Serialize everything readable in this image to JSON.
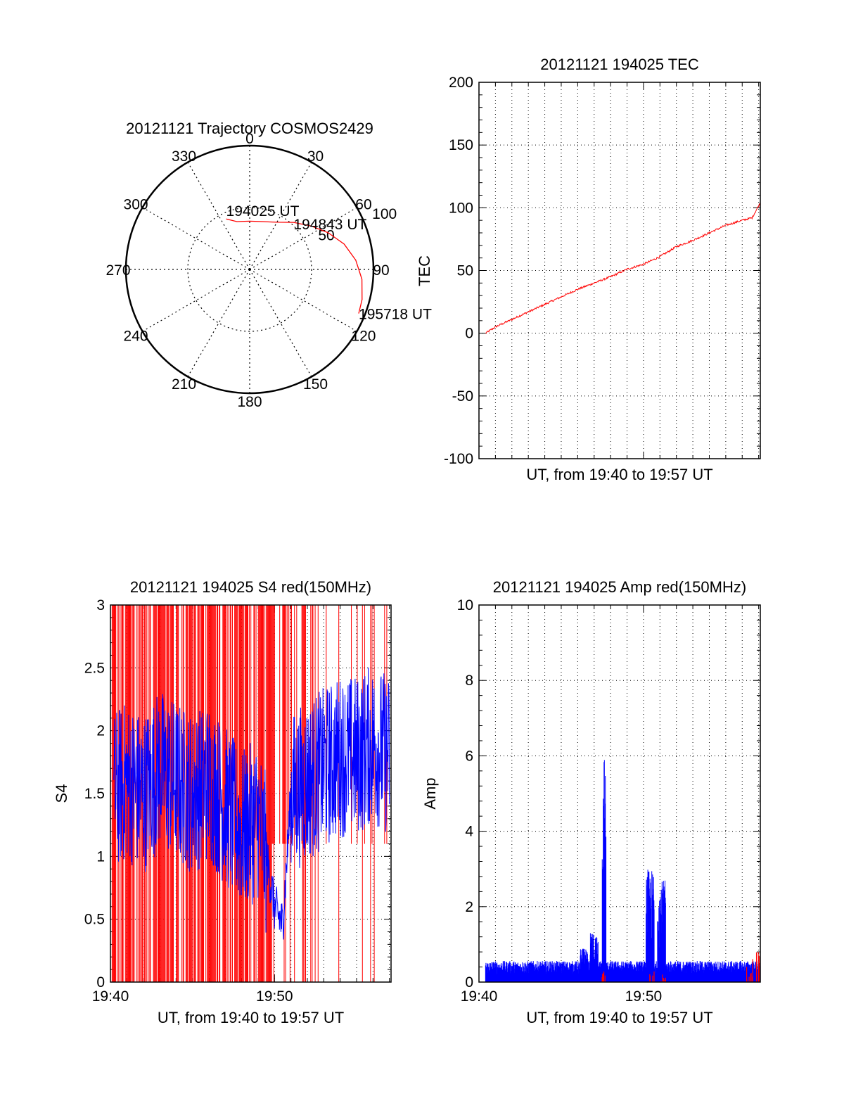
{
  "chart_data": [
    {
      "id": "trajectory",
      "type": "polar",
      "title": "20121121 Trajectory COSMOS2429",
      "azimuth_labels": [
        "0",
        "30",
        "60",
        "90",
        "120",
        "150",
        "180",
        "210",
        "240",
        "270",
        "300",
        "330"
      ],
      "azimuth_values": [
        0,
        30,
        60,
        90,
        120,
        150,
        180,
        210,
        240,
        270,
        300,
        330
      ],
      "radial_labels": [
        "50",
        "100"
      ],
      "radial_values": [
        50,
        100
      ],
      "radial_max": 100,
      "grid": true,
      "track_color": "#ff0000",
      "track": [
        {
          "az": 335,
          "r": 45
        },
        {
          "az": 345,
          "r": 40
        },
        {
          "az": 0,
          "r": 39
        },
        {
          "az": 15,
          "r": 40
        },
        {
          "az": 30,
          "r": 44
        },
        {
          "az": 43,
          "r": 52
        },
        {
          "az": 55,
          "r": 61
        },
        {
          "az": 65,
          "r": 70
        },
        {
          "az": 75,
          "r": 79
        },
        {
          "az": 85,
          "r": 86
        },
        {
          "az": 95,
          "r": 91
        },
        {
          "az": 105,
          "r": 94
        },
        {
          "az": 112,
          "r": 95
        }
      ],
      "annotations": [
        {
          "text": "194025 UT",
          "az": 335,
          "r": 45
        },
        {
          "text": "194843 UT",
          "az": 43,
          "r": 52
        },
        {
          "text": "195718 UT",
          "az": 112,
          "r": 95
        }
      ]
    },
    {
      "id": "tec",
      "type": "line",
      "title": "20121121 194025 TEC",
      "xlabel": "UT, from 19:40 to 19:57 UT",
      "ylabel": "TEC",
      "ylim": [
        -100,
        200
      ],
      "yticks": [
        "-100",
        "-50",
        "0",
        "50",
        "100",
        "150",
        "200"
      ],
      "xlim_min": [
        0,
        17.1
      ],
      "grid": true,
      "series": [
        {
          "color": "#ff0000",
          "x_min": [
            0.4,
            1,
            2,
            3,
            4,
            5,
            6,
            7,
            8,
            9,
            10,
            11,
            12,
            13,
            14,
            15,
            16,
            16.6,
            17.1
          ],
          "values": [
            0,
            5,
            11,
            17,
            23,
            29,
            35,
            40,
            45,
            51,
            55,
            61,
            69,
            74,
            80,
            86,
            90,
            92,
            104
          ]
        }
      ]
    },
    {
      "id": "s4",
      "type": "line",
      "title": "20121121 194025 S4 red(150MHz)",
      "xlabel": "UT, from 19:40 to 19:57 UT",
      "ylabel": "S4",
      "ylim": [
        0,
        3
      ],
      "yticks": [
        "0",
        "0.5",
        "1",
        "1.5",
        "2",
        "2.5",
        "3"
      ],
      "xtick_labels": [
        "19:40",
        "19:50"
      ],
      "xtick_values": [
        0,
        10
      ],
      "xlim_min": [
        0,
        17.1
      ],
      "grid": true,
      "series": [
        {
          "color": "#ff0000",
          "note": "dense vertical lines 0–3",
          "range_min": [
            0,
            17
          ]
        },
        {
          "color": "#0000ff",
          "x_min": [
            0,
            1,
            2,
            3,
            4,
            5,
            6,
            7,
            8,
            9,
            9.5,
            10,
            10.5,
            11,
            12,
            13,
            14,
            15,
            16,
            17
          ],
          "values": [
            1.5,
            1.6,
            1.5,
            1.7,
            1.6,
            1.5,
            1.6,
            1.4,
            1.2,
            1.3,
            1.0,
            0.6,
            0.45,
            1.5,
            1.6,
            1.7,
            1.8,
            1.8,
            1.9,
            1.8
          ]
        }
      ]
    },
    {
      "id": "amp",
      "type": "line",
      "title": "20121121 194025 Amp red(150MHz)",
      "xlabel": "UT, from 19:40 to 19:57 UT",
      "ylabel": "Amp",
      "ylim": [
        0,
        10
      ],
      "yticks": [
        "0",
        "2",
        "4",
        "6",
        "8",
        "10"
      ],
      "xtick_labels": [
        "19:40",
        "19:50"
      ],
      "xtick_values": [
        0,
        10
      ],
      "xlim_min": [
        0,
        17.1
      ],
      "grid": true,
      "series": [
        {
          "color": "#0000ff",
          "baseline": 0.4,
          "spikes": [
            {
              "x_min": 6.4,
              "value": 0.9
            },
            {
              "x_min": 7.0,
              "value": 1.3
            },
            {
              "x_min": 7.6,
              "value": 6.3
            },
            {
              "x_min": 10.4,
              "value": 3.0
            },
            {
              "x_min": 11.1,
              "value": 2.7
            }
          ]
        },
        {
          "color": "#ff0000",
          "note": "small spikes near zero"
        }
      ]
    }
  ]
}
